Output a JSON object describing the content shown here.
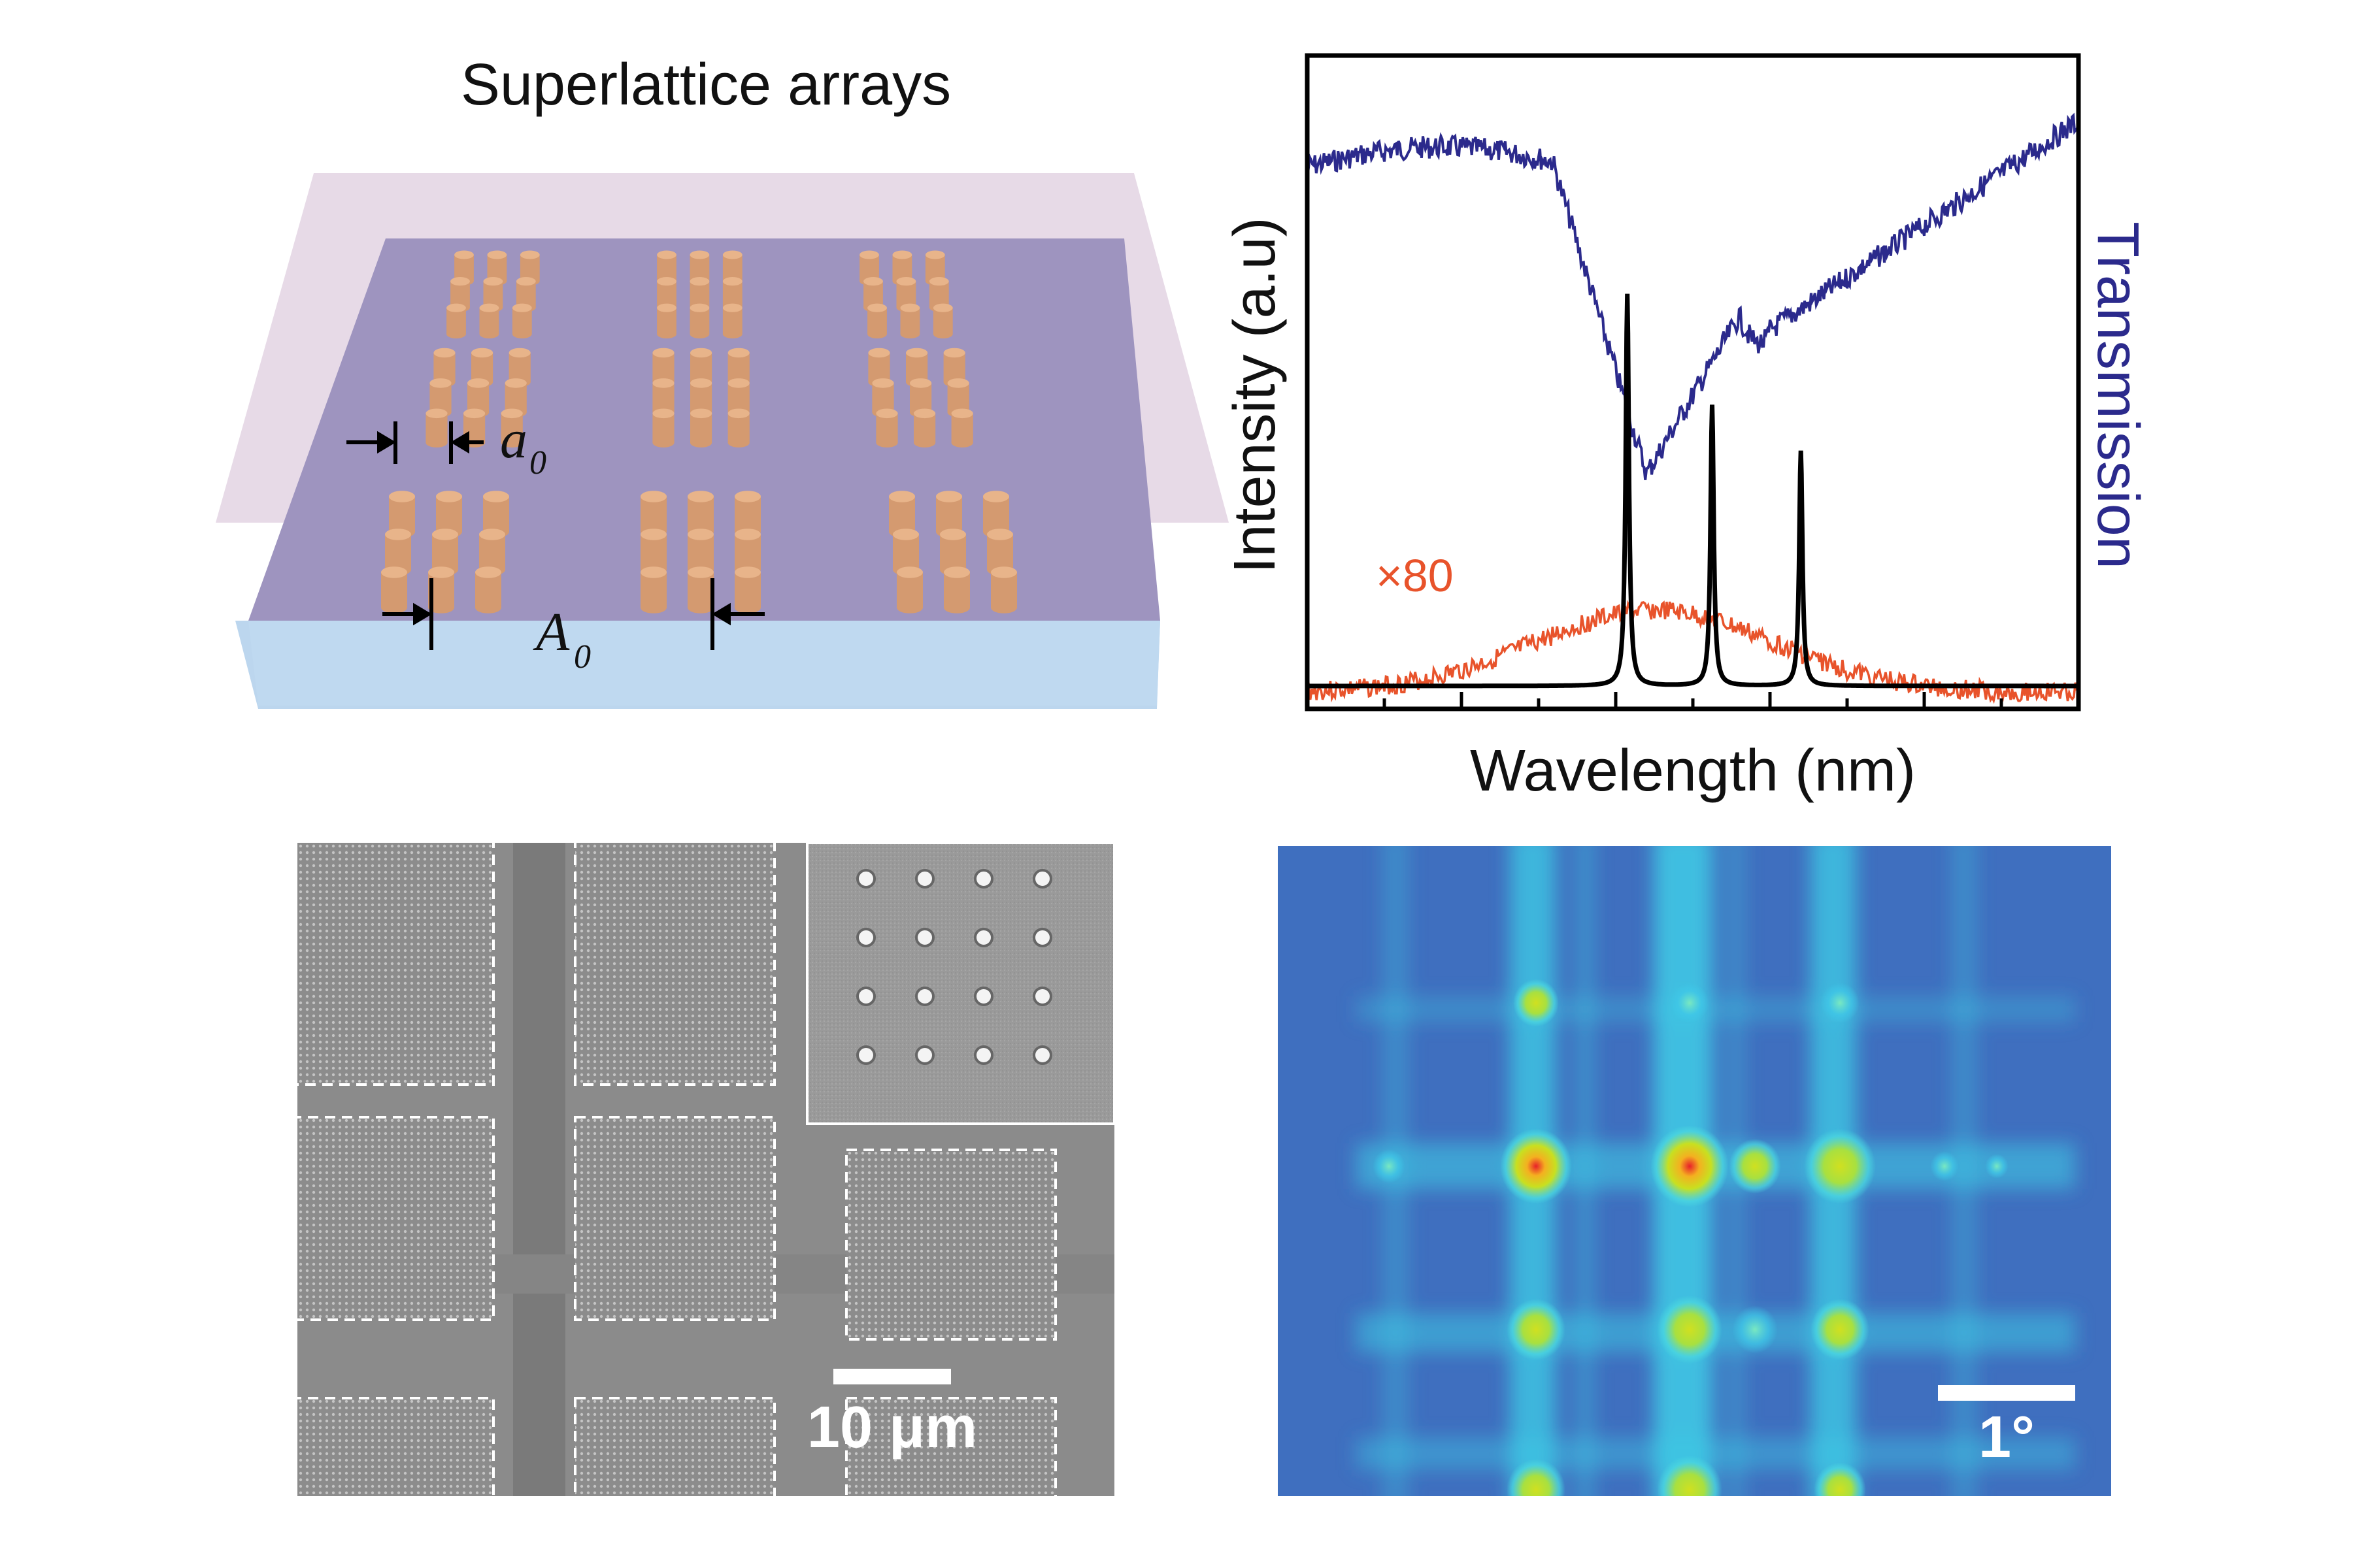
{
  "schematic": {
    "title": "Superlattice arrays",
    "label_small_period": "a",
    "label_small_period_sub": "0",
    "label_large_period": "A",
    "label_large_period_sub": "0",
    "colors": {
      "cladding": "#e3d4e3",
      "layer": "#9a90bc",
      "substrate": "#bcd7ef",
      "pillar": "#d49a70"
    }
  },
  "spectrum": {
    "xlabel": "Wavelength (nm)",
    "ylabel_left": "Intensity (a.u)",
    "ylabel_right": "Transmission",
    "annotation": "×80",
    "colors": {
      "transmission": "#2b2a8c",
      "emission": "#000000",
      "broadband": "#e8532b"
    }
  },
  "sem": {
    "scale_label": "10 μm"
  },
  "farfield": {
    "scale_label": "1°"
  }
}
